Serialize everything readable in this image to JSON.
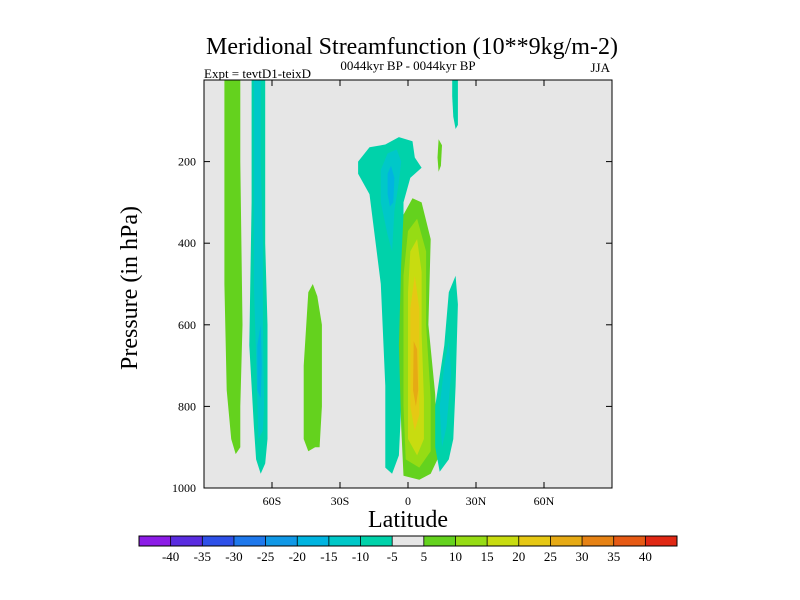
{
  "chart_data": {
    "type": "contour",
    "title": "Meridional Streamfunction (10**9kg/m-2)",
    "subtitle_left": "Expt = tevtD1-teixD",
    "subtitle_center": "0044kyr BP - 0044kyr BP",
    "subtitle_right": "JJA",
    "xlabel": "Latitude",
    "ylabel": "Pressure (in hPa)",
    "xlim": [
      -90,
      90
    ],
    "ylim": [
      0,
      1000
    ],
    "y_inverted": true,
    "background_color": "#e6e6e6",
    "x_ticks": [
      {
        "value": -60,
        "label": "60S"
      },
      {
        "value": -30,
        "label": "30S"
      },
      {
        "value": 0,
        "label": "0"
      },
      {
        "value": 30,
        "label": "30N"
      },
      {
        "value": 60,
        "label": "60N"
      }
    ],
    "y_ticks": [
      {
        "value": 200,
        "label": "200"
      },
      {
        "value": 400,
        "label": "400"
      },
      {
        "value": 600,
        "label": "600"
      },
      {
        "value": 800,
        "label": "800"
      },
      {
        "value": 1000,
        "label": "1000"
      }
    ],
    "colorbar": {
      "levels": [
        -40,
        -35,
        -30,
        -25,
        -20,
        -15,
        -10,
        -5,
        5,
        10,
        15,
        20,
        25,
        30,
        35,
        40
      ],
      "labels": [
        "-40",
        "-35",
        "-30",
        "-25",
        "-20",
        "-15",
        "-10",
        "-5",
        "5",
        "10",
        "15",
        "20",
        "25",
        "30",
        "35",
        "40"
      ],
      "colors": [
        "#8c1ce6",
        "#5a2ce0",
        "#2e50e8",
        "#1e78ec",
        "#1098e6",
        "#00b4e0",
        "#00c8c8",
        "#00d2aa",
        "#e6e6e6",
        "#64d21e",
        "#96dc14",
        "#c8dc10",
        "#e6c814",
        "#e6aa14",
        "#e68214",
        "#e65a14",
        "#e02814"
      ]
    },
    "regions": [
      {
        "name": "sh-high-lat-weak-positive",
        "fill": "#64d21e",
        "points": [
          [
            -81,
            0
          ],
          [
            -74,
            0
          ],
          [
            -74,
            200
          ],
          [
            -73,
            600
          ],
          [
            -74,
            800
          ],
          [
            -74,
            900
          ],
          [
            -76,
            917
          ],
          [
            -78,
            880
          ],
          [
            -80,
            760
          ],
          [
            -81,
            500
          ]
        ]
      },
      {
        "name": "sh-60S-negative-outer",
        "fill": "#00d2aa",
        "points": [
          [
            -69,
            0
          ],
          [
            -63,
            0
          ],
          [
            -63,
            200
          ],
          [
            -63,
            400
          ],
          [
            -62,
            600
          ],
          [
            -62,
            800
          ],
          [
            -62,
            880
          ],
          [
            -63,
            940
          ],
          [
            -65,
            965
          ],
          [
            -67,
            930
          ],
          [
            -68,
            850
          ],
          [
            -70,
            650
          ],
          [
            -69,
            300
          ]
        ]
      },
      {
        "name": "sh-60S-negative-inner",
        "fill": "#00c8c8",
        "points": [
          [
            -68,
            0
          ],
          [
            -65,
            0
          ],
          [
            -65,
            200
          ],
          [
            -64,
            400
          ],
          [
            -64,
            600
          ],
          [
            -63.5,
            800
          ],
          [
            -64,
            860
          ],
          [
            -66,
            880
          ],
          [
            -66.5,
            780
          ],
          [
            -68,
            500
          ]
        ]
      },
      {
        "name": "sh-60S-negative-core",
        "fill": "#00b4e0",
        "points": [
          [
            -66.5,
            650
          ],
          [
            -65,
            600
          ],
          [
            -64.5,
            700
          ],
          [
            -65,
            780
          ],
          [
            -66.5,
            760
          ]
        ]
      },
      {
        "name": "sh-40S-weak-positive",
        "fill": "#64d21e",
        "points": [
          [
            -44,
            520
          ],
          [
            -42,
            500
          ],
          [
            -40,
            530
          ],
          [
            -38,
            600
          ],
          [
            -38,
            800
          ],
          [
            -39,
            900
          ],
          [
            -41,
            900
          ],
          [
            -44,
            910
          ],
          [
            -46,
            880
          ],
          [
            -46,
            700
          ]
        ]
      },
      {
        "name": "tropical-negative-outer",
        "fill": "#00d2aa",
        "points": [
          [
            -22,
            200
          ],
          [
            -17,
            165
          ],
          [
            -10,
            158
          ],
          [
            -4,
            140
          ],
          [
            2,
            150
          ],
          [
            3,
            190
          ],
          [
            6,
            215
          ],
          [
            1,
            240
          ],
          [
            -2,
            300
          ],
          [
            -2,
            450
          ],
          [
            -2,
            600
          ],
          [
            -3,
            800
          ],
          [
            -4,
            920
          ],
          [
            -7,
            965
          ],
          [
            -10,
            950
          ],
          [
            -10,
            750
          ],
          [
            -12,
            500
          ],
          [
            -17,
            280
          ],
          [
            -22,
            230
          ]
        ]
      },
      {
        "name": "tropical-negative-inner",
        "fill": "#00c8c8",
        "points": [
          [
            -12,
            220
          ],
          [
            -9,
            180
          ],
          [
            -5,
            170
          ],
          [
            -3,
            200
          ],
          [
            -4,
            250
          ],
          [
            -6,
            320
          ],
          [
            -7,
            420
          ],
          [
            -9,
            380
          ],
          [
            -12,
            300
          ]
        ]
      },
      {
        "name": "tropical-negative-core",
        "fill": "#00b4e0",
        "points": [
          [
            -9,
            230
          ],
          [
            -7.5,
            210
          ],
          [
            -6,
            240
          ],
          [
            -6.5,
            300
          ],
          [
            -8,
            310
          ],
          [
            -9,
            280
          ]
        ]
      },
      {
        "name": "tropical-positive-5",
        "fill": "#64d21e",
        "points": [
          [
            -3,
            450
          ],
          [
            -2,
            330
          ],
          [
            2,
            290
          ],
          [
            6,
            300
          ],
          [
            10,
            390
          ],
          [
            9,
            600
          ],
          [
            12,
            770
          ],
          [
            13,
            930
          ],
          [
            10,
            965
          ],
          [
            5,
            980
          ],
          [
            -2,
            970
          ],
          [
            -3,
            850
          ],
          [
            -4,
            650
          ]
        ]
      },
      {
        "name": "tropical-positive-10",
        "fill": "#96dc14",
        "points": [
          [
            -2,
            480
          ],
          [
            0,
            370
          ],
          [
            4,
            340
          ],
          [
            8,
            420
          ],
          [
            8,
            600
          ],
          [
            10,
            780
          ],
          [
            10,
            910
          ],
          [
            5,
            950
          ],
          [
            -1,
            930
          ],
          [
            -2,
            800
          ]
        ]
      },
      {
        "name": "tropical-positive-15",
        "fill": "#c8dc10",
        "points": [
          [
            0,
            520
          ],
          [
            1,
            420
          ],
          [
            4,
            390
          ],
          [
            6,
            470
          ],
          [
            6,
            620
          ],
          [
            7,
            780
          ],
          [
            7,
            880
          ],
          [
            4,
            920
          ],
          [
            0,
            880
          ],
          [
            0,
            700
          ]
        ]
      },
      {
        "name": "tropical-positive-20",
        "fill": "#e6c814",
        "points": [
          [
            1,
            560
          ],
          [
            3,
            480
          ],
          [
            5,
            560
          ],
          [
            5,
            720
          ],
          [
            5,
            820
          ],
          [
            3,
            860
          ],
          [
            1,
            800
          ],
          [
            1,
            650
          ]
        ]
      },
      {
        "name": "tropical-positive-25",
        "fill": "#e6aa14",
        "points": [
          [
            2.5,
            640
          ],
          [
            4,
            660
          ],
          [
            4.5,
            760
          ],
          [
            3.5,
            800
          ],
          [
            2.2,
            760
          ]
        ]
      },
      {
        "name": "nh-15N-negative",
        "fill": "#00d2aa",
        "points": [
          [
            16,
            650
          ],
          [
            18,
            520
          ],
          [
            21,
            480
          ],
          [
            22,
            550
          ],
          [
            21,
            750
          ],
          [
            20,
            880
          ],
          [
            18,
            930
          ],
          [
            14,
            960
          ],
          [
            12,
            900
          ],
          [
            12,
            800
          ]
        ]
      },
      {
        "name": "nh-15N-negative-inner",
        "fill": "#00c8c8",
        "points": [
          [
            14,
            800
          ],
          [
            16,
            700
          ],
          [
            18,
            640
          ],
          [
            19,
            720
          ],
          [
            17,
            850
          ],
          [
            15,
            900
          ]
        ]
      },
      {
        "name": "nh-13N-upper-positive",
        "fill": "#64d21e",
        "points": [
          [
            13.5,
            145
          ],
          [
            15,
            160
          ],
          [
            14.5,
            210
          ],
          [
            13.5,
            225
          ],
          [
            13,
            190
          ]
        ]
      },
      {
        "name": "nh-20N-upper-negative",
        "fill": "#00d2aa",
        "points": [
          [
            19.5,
            0
          ],
          [
            22,
            0
          ],
          [
            22,
            110
          ],
          [
            21,
            120
          ],
          [
            20,
            90
          ],
          [
            19.5,
            40
          ]
        ]
      }
    ]
  }
}
